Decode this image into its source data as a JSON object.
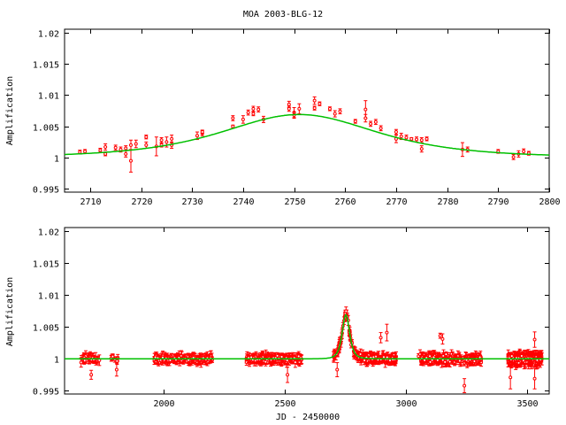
{
  "colors": {
    "data": "#ff0000",
    "model": "#00c000",
    "axes": "#000000"
  },
  "chart_data": [
    {
      "type": "scatter",
      "title": "MOA 2003-BLG-12",
      "xlabel": "",
      "ylabel": "Amplification",
      "xlim": [
        2705,
        2800
      ],
      "ylim": [
        0.9945,
        1.0205
      ],
      "xticks": [
        2710,
        2720,
        2730,
        2740,
        2750,
        2760,
        2770,
        2780,
        2790,
        2800
      ],
      "xtick_labels": [
        "2710",
        "2720",
        "2730",
        "2740",
        "2750",
        "2760",
        "2770",
        "2780",
        "2790",
        "2800"
      ],
      "yticks": [
        0.995,
        1.0,
        1.005,
        1.01,
        1.015,
        1.02
      ],
      "ytick_labels": [
        "0.995",
        "1",
        "1.005",
        "1.01",
        "1.015",
        "1.02"
      ],
      "model": {
        "t0": 2751,
        "u0": 3.89,
        "tE": 6.8
      },
      "points": [
        [
          2708,
          1.0009,
          0.0003
        ],
        [
          2709,
          1.001,
          0.0003
        ],
        [
          2712,
          1.0012,
          0.0003
        ],
        [
          2713,
          1.0017,
          0.0005
        ],
        [
          2713,
          1.0006,
          0.0003
        ],
        [
          2715,
          1.0016,
          0.0004
        ],
        [
          2716,
          1.0013,
          0.0004
        ],
        [
          2717,
          1.0015,
          0.0004
        ],
        [
          2717,
          1.0006,
          0.0005
        ],
        [
          2718,
          1.002,
          0.0008
        ],
        [
          2718,
          0.9995,
          0.0018
        ],
        [
          2719,
          1.0022,
          0.0006
        ],
        [
          2721,
          1.0033,
          0.0003
        ],
        [
          2721,
          1.002,
          0.0005
        ],
        [
          2723,
          1.0018,
          0.0015
        ],
        [
          2724,
          1.0028,
          0.0004
        ],
        [
          2724,
          1.002,
          0.0003
        ],
        [
          2725,
          1.0025,
          0.0008
        ],
        [
          2726,
          1.003,
          0.0006
        ],
        [
          2726,
          1.002,
          0.0005
        ],
        [
          2731,
          1.0035,
          0.0006
        ],
        [
          2732,
          1.0039,
          0.0004
        ],
        [
          2732,
          1.0041,
          0.0003
        ],
        [
          2738,
          1.0063,
          0.0004
        ],
        [
          2738,
          1.005,
          0.0002
        ],
        [
          2740,
          1.0061,
          0.0006
        ],
        [
          2741,
          1.0072,
          0.0004
        ],
        [
          2742,
          1.0078,
          0.0004
        ],
        [
          2742,
          1.007,
          0.0003
        ],
        [
          2743,
          1.0077,
          0.0004
        ],
        [
          2744,
          1.0061,
          0.0005
        ],
        [
          2749,
          1.0085,
          0.0005
        ],
        [
          2749,
          1.0078,
          0.0004
        ],
        [
          2750,
          1.0072,
          0.0008
        ],
        [
          2750,
          1.0068,
          0.0005
        ],
        [
          2751,
          1.0078,
          0.0008
        ],
        [
          2754,
          1.0091,
          0.0006
        ],
        [
          2754,
          1.0079,
          0.0003
        ],
        [
          2755,
          1.0086,
          0.0003
        ],
        [
          2757,
          1.0078,
          0.0003
        ],
        [
          2758,
          1.007,
          0.0005
        ],
        [
          2759,
          1.0074,
          0.0004
        ],
        [
          2762,
          1.0058,
          0.0003
        ],
        [
          2764,
          1.0077,
          0.0014
        ],
        [
          2764,
          1.0063,
          0.0006
        ],
        [
          2765,
          1.0054,
          0.0004
        ],
        [
          2766,
          1.0057,
          0.0004
        ],
        [
          2767,
          1.0047,
          0.0004
        ],
        [
          2770,
          1.0041,
          0.0004
        ],
        [
          2770,
          1.003,
          0.0006
        ],
        [
          2771,
          1.0034,
          0.0005
        ],
        [
          2772,
          1.0032,
          0.0004
        ],
        [
          2773,
          1.003,
          0.0002
        ],
        [
          2774,
          1.0029,
          0.0004
        ],
        [
          2775,
          1.0028,
          0.0004
        ],
        [
          2775,
          1.0014,
          0.0005
        ],
        [
          2776,
          1.003,
          0.0003
        ],
        [
          2783,
          1.0013,
          0.0011
        ],
        [
          2784,
          1.0013,
          0.0004
        ],
        [
          2790,
          1.001,
          0.0003
        ],
        [
          2793,
          1.0001,
          0.0004
        ],
        [
          2794,
          1.0006,
          0.0005
        ],
        [
          2795,
          1.001,
          0.0004
        ],
        [
          2796,
          1.0007,
          0.0003
        ]
      ]
    },
    {
      "type": "scatter",
      "title": "",
      "xlabel": "JD - 2450000",
      "ylabel": "Amplification",
      "xlim": [
        1590,
        3590
      ],
      "ylim": [
        0.9945,
        1.0205
      ],
      "xticks": [
        2000,
        2500,
        3000,
        3500
      ],
      "xtick_labels": [
        "2000",
        "2500",
        "3000",
        "3500"
      ],
      "yticks": [
        0.995,
        1.0,
        1.005,
        1.01,
        1.015,
        1.02
      ],
      "ytick_labels": [
        "0.995",
        "1",
        "1.005",
        "1.01",
        "1.015",
        "1.02"
      ],
      "model": {
        "t0": 2751,
        "u0": 3.89,
        "tE": 6.8
      },
      "seasons": [
        {
          "start": 1650,
          "end": 1735,
          "n": 40,
          "scatter": 0.0007,
          "err": 0.0006
        },
        {
          "start": 1780,
          "end": 1810,
          "n": 10,
          "scatter": 0.0005,
          "err": 0.0004
        },
        {
          "start": 1960,
          "end": 2200,
          "n": 150,
          "scatter": 0.0007,
          "err": 0.0006
        },
        {
          "start": 2340,
          "end": 2570,
          "n": 170,
          "scatter": 0.0007,
          "err": 0.0006
        },
        {
          "start": 2700,
          "end": 2960,
          "n": 200,
          "scatter": 0.0007,
          "err": 0.0006
        },
        {
          "start": 3050,
          "end": 3310,
          "n": 200,
          "scatter": 0.0008,
          "err": 0.0006
        },
        {
          "start": 3420,
          "end": 3560,
          "n": 200,
          "scatter": 0.0009,
          "err": 0.0007
        }
      ],
      "outliers": [
        [
          2920,
          1.0041,
          0.0013
        ],
        [
          2895,
          1.0033,
          0.0008
        ],
        [
          3140,
          1.0036,
          0.0004
        ],
        [
          3150,
          1.0031,
          0.0008
        ],
        [
          3240,
          0.9958,
          0.0011
        ],
        [
          2510,
          0.9975,
          0.0012
        ],
        [
          3430,
          0.9971,
          0.0018
        ],
        [
          3530,
          0.9969,
          0.0016
        ],
        [
          3530,
          1.003,
          0.0012
        ],
        [
          1700,
          0.9975,
          0.0007
        ],
        [
          1805,
          0.9983,
          0.001
        ],
        [
          2715,
          0.9983,
          0.0011
        ]
      ]
    }
  ]
}
